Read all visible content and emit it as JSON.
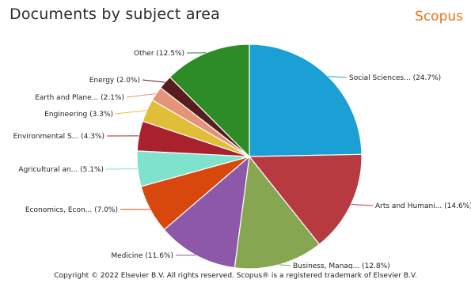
{
  "header": {
    "title": "Documents by subject area",
    "brand": "Scopus"
  },
  "footer": {
    "copyright": "Copyright © 2022 Elsevier B.V. All rights reserved. Scopus® is a registered trademark of Elsevier B.V."
  },
  "chart_data": {
    "type": "pie",
    "title": "Documents by subject area",
    "slices": [
      {
        "label": "Social Sciences... (24.7%)",
        "value": 24.7,
        "color": "#1aa0d4"
      },
      {
        "label": "Arts and Humani... (14.6%)",
        "value": 14.6,
        "color": "#b73a40"
      },
      {
        "label": "Business, Manag... (12.8%)",
        "value": 12.8,
        "color": "#87a652"
      },
      {
        "label": "Medicine (11.6%)",
        "value": 11.6,
        "color": "#8e58a8"
      },
      {
        "label": "Economics, Econ... (7.0%)",
        "value": 7.0,
        "color": "#d8480d"
      },
      {
        "label": "Agricultural an... (5.1%)",
        "value": 5.1,
        "color": "#7fe2cc"
      },
      {
        "label": "Environmental S... (4.3%)",
        "value": 4.3,
        "color": "#a8212c"
      },
      {
        "label": "Engineering (3.3%)",
        "value": 3.3,
        "color": "#e0be38"
      },
      {
        "label": "Earth and Plane... (2.1%)",
        "value": 2.1,
        "color": "#e5937a"
      },
      {
        "label": "Energy (2.0%)",
        "value": 2.0,
        "color": "#571c1c"
      },
      {
        "label": "Other (12.5%)",
        "value": 12.5,
        "color": "#2d8c25"
      }
    ],
    "legend": "none"
  }
}
